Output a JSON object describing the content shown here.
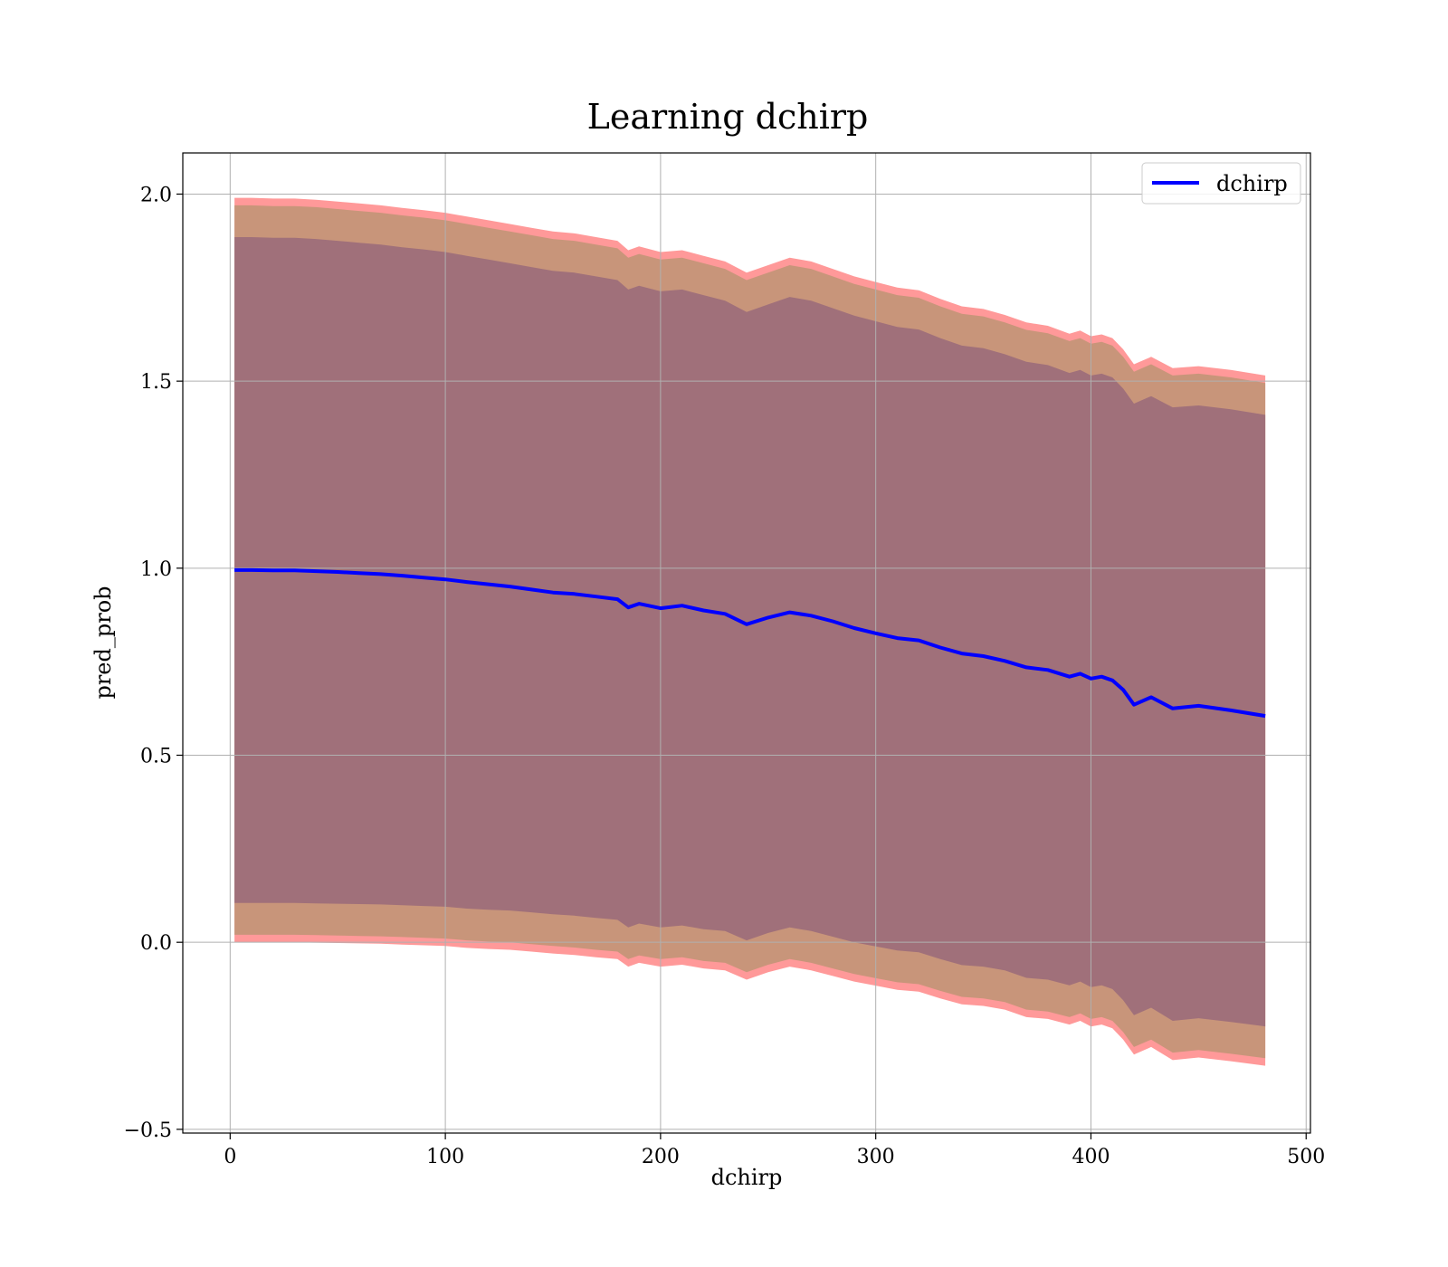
{
  "chart_data": {
    "type": "line",
    "title": "Learning dchirp",
    "xlabel": "dchirp",
    "ylabel": "pred_prob",
    "xlim": [
      -22,
      502
    ],
    "ylim": [
      -0.51,
      2.11
    ],
    "xticks": [
      0,
      100,
      200,
      300,
      400,
      500
    ],
    "yticks": [
      -0.5,
      0.0,
      0.5,
      1.0,
      1.5,
      2.0
    ],
    "xtick_labels": [
      "0",
      "100",
      "200",
      "300",
      "400",
      "500"
    ],
    "ytick_labels": [
      "−0.5",
      "0.0",
      "0.5",
      "1.0",
      "1.5",
      "2.0"
    ],
    "grid": true,
    "legend": {
      "placement": "top-right",
      "entries": [
        "dchirp"
      ]
    },
    "colors": {
      "line": "#0000ff",
      "band_outer": "#ff9999",
      "band_middle": "#c8957a",
      "band_inner": "#a0707a",
      "grid": "#b0b0b0"
    },
    "series": [
      {
        "name": "dchirp",
        "x": [
          2,
          10,
          20,
          30,
          40,
          50,
          60,
          70,
          80,
          90,
          100,
          110,
          120,
          130,
          140,
          150,
          160,
          170,
          180,
          185,
          190,
          200,
          210,
          220,
          230,
          240,
          250,
          260,
          270,
          280,
          290,
          300,
          310,
          320,
          330,
          340,
          350,
          360,
          370,
          380,
          390,
          395,
          400,
          405,
          410,
          415,
          420,
          428,
          438,
          450,
          465,
          481
        ],
        "y": [
          0.995,
          0.995,
          0.994,
          0.994,
          0.992,
          0.99,
          0.987,
          0.984,
          0.98,
          0.975,
          0.97,
          0.963,
          0.957,
          0.951,
          0.943,
          0.935,
          0.931,
          0.924,
          0.917,
          0.895,
          0.905,
          0.893,
          0.9,
          0.887,
          0.878,
          0.85,
          0.868,
          0.882,
          0.873,
          0.858,
          0.84,
          0.826,
          0.813,
          0.807,
          0.788,
          0.772,
          0.765,
          0.752,
          0.735,
          0.728,
          0.71,
          0.718,
          0.705,
          0.71,
          0.7,
          0.675,
          0.635,
          0.655,
          0.625,
          0.632,
          0.62,
          0.605
        ]
      }
    ],
    "bands": [
      {
        "level": "outer",
        "x": [
          2,
          10,
          20,
          30,
          40,
          50,
          60,
          70,
          80,
          90,
          100,
          110,
          120,
          130,
          140,
          150,
          160,
          170,
          180,
          185,
          190,
          200,
          210,
          220,
          230,
          240,
          250,
          260,
          270,
          280,
          290,
          300,
          310,
          320,
          330,
          340,
          350,
          360,
          370,
          380,
          390,
          395,
          400,
          405,
          410,
          415,
          420,
          428,
          438,
          450,
          465,
          481
        ],
        "upper": [
          1.99,
          1.99,
          1.988,
          1.988,
          1.985,
          1.98,
          1.975,
          1.97,
          1.963,
          1.957,
          1.95,
          1.94,
          1.93,
          1.92,
          1.91,
          1.9,
          1.895,
          1.885,
          1.875,
          1.85,
          1.86,
          1.845,
          1.85,
          1.835,
          1.82,
          1.79,
          1.81,
          1.83,
          1.82,
          1.8,
          1.78,
          1.765,
          1.75,
          1.743,
          1.72,
          1.7,
          1.693,
          1.677,
          1.657,
          1.648,
          1.627,
          1.635,
          1.62,
          1.625,
          1.615,
          1.585,
          1.545,
          1.565,
          1.535,
          1.54,
          1.53,
          1.515
        ],
        "lower": [
          0.0,
          0.0,
          0.0,
          0.0,
          -0.001,
          -0.002,
          -0.003,
          -0.004,
          -0.006,
          -0.008,
          -0.01,
          -0.015,
          -0.018,
          -0.02,
          -0.025,
          -0.03,
          -0.034,
          -0.04,
          -0.045,
          -0.065,
          -0.055,
          -0.065,
          -0.06,
          -0.07,
          -0.075,
          -0.1,
          -0.08,
          -0.065,
          -0.075,
          -0.09,
          -0.105,
          -0.116,
          -0.127,
          -0.132,
          -0.15,
          -0.166,
          -0.17,
          -0.18,
          -0.2,
          -0.205,
          -0.22,
          -0.21,
          -0.225,
          -0.22,
          -0.23,
          -0.26,
          -0.3,
          -0.28,
          -0.315,
          -0.308,
          -0.318,
          -0.33
        ]
      },
      {
        "level": "middle",
        "x": [
          2,
          10,
          20,
          30,
          40,
          50,
          60,
          70,
          80,
          90,
          100,
          110,
          120,
          130,
          140,
          150,
          160,
          170,
          180,
          185,
          190,
          200,
          210,
          220,
          230,
          240,
          250,
          260,
          270,
          280,
          290,
          300,
          310,
          320,
          330,
          340,
          350,
          360,
          370,
          380,
          390,
          395,
          400,
          405,
          410,
          415,
          420,
          428,
          438,
          450,
          465,
          481
        ],
        "upper": [
          1.97,
          1.97,
          1.968,
          1.968,
          1.965,
          1.96,
          1.955,
          1.95,
          1.943,
          1.937,
          1.93,
          1.92,
          1.91,
          1.9,
          1.89,
          1.88,
          1.875,
          1.865,
          1.855,
          1.83,
          1.84,
          1.825,
          1.83,
          1.815,
          1.8,
          1.77,
          1.79,
          1.81,
          1.8,
          1.78,
          1.76,
          1.745,
          1.73,
          1.723,
          1.7,
          1.68,
          1.673,
          1.657,
          1.637,
          1.628,
          1.607,
          1.615,
          1.6,
          1.605,
          1.595,
          1.565,
          1.525,
          1.545,
          1.515,
          1.52,
          1.51,
          1.495
        ],
        "lower": [
          0.02,
          0.02,
          0.02,
          0.02,
          0.019,
          0.018,
          0.017,
          0.016,
          0.014,
          0.012,
          0.01,
          0.005,
          0.002,
          0.0,
          -0.005,
          -0.01,
          -0.014,
          -0.02,
          -0.025,
          -0.045,
          -0.035,
          -0.045,
          -0.04,
          -0.05,
          -0.055,
          -0.08,
          -0.06,
          -0.045,
          -0.055,
          -0.07,
          -0.085,
          -0.096,
          -0.107,
          -0.112,
          -0.13,
          -0.146,
          -0.15,
          -0.16,
          -0.18,
          -0.185,
          -0.2,
          -0.19,
          -0.205,
          -0.2,
          -0.21,
          -0.24,
          -0.28,
          -0.26,
          -0.295,
          -0.288,
          -0.298,
          -0.31
        ]
      },
      {
        "level": "inner",
        "x": [
          2,
          10,
          20,
          30,
          40,
          50,
          60,
          70,
          80,
          90,
          100,
          110,
          120,
          130,
          140,
          150,
          160,
          170,
          180,
          185,
          190,
          200,
          210,
          220,
          230,
          240,
          250,
          260,
          270,
          280,
          290,
          300,
          310,
          320,
          330,
          340,
          350,
          360,
          370,
          380,
          390,
          395,
          400,
          405,
          410,
          415,
          420,
          428,
          438,
          450,
          465,
          481
        ],
        "upper": [
          1.885,
          1.885,
          1.883,
          1.883,
          1.88,
          1.875,
          1.87,
          1.865,
          1.858,
          1.852,
          1.845,
          1.835,
          1.825,
          1.815,
          1.805,
          1.795,
          1.79,
          1.78,
          1.77,
          1.745,
          1.755,
          1.74,
          1.745,
          1.73,
          1.715,
          1.685,
          1.705,
          1.725,
          1.715,
          1.695,
          1.675,
          1.66,
          1.645,
          1.638,
          1.615,
          1.595,
          1.588,
          1.572,
          1.552,
          1.543,
          1.522,
          1.53,
          1.515,
          1.52,
          1.51,
          1.48,
          1.44,
          1.46,
          1.43,
          1.435,
          1.425,
          1.41
        ],
        "lower": [
          0.105,
          0.105,
          0.105,
          0.105,
          0.104,
          0.103,
          0.102,
          0.101,
          0.099,
          0.097,
          0.095,
          0.09,
          0.087,
          0.085,
          0.08,
          0.075,
          0.071,
          0.065,
          0.06,
          0.04,
          0.05,
          0.04,
          0.045,
          0.035,
          0.03,
          0.005,
          0.025,
          0.04,
          0.03,
          0.015,
          0.0,
          -0.011,
          -0.022,
          -0.027,
          -0.045,
          -0.061,
          -0.065,
          -0.075,
          -0.095,
          -0.1,
          -0.115,
          -0.105,
          -0.12,
          -0.115,
          -0.125,
          -0.155,
          -0.195,
          -0.175,
          -0.21,
          -0.203,
          -0.213,
          -0.225
        ]
      }
    ]
  }
}
